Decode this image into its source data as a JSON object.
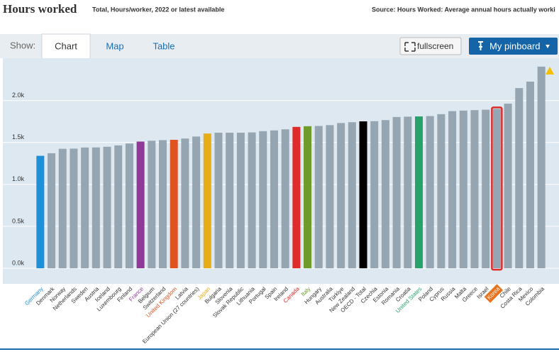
{
  "header": {
    "title": "Hours worked",
    "subtitle": "Total, Hours/worker, 2022 or latest available",
    "source": "Source: Hours Worked: Average annual hours actually worki"
  },
  "tabs": {
    "show": "Show:",
    "items": [
      "Chart",
      "Map",
      "Table"
    ],
    "fullscreen": "fullscreen",
    "pinboard": "My pinboard"
  },
  "chart_data": {
    "type": "bar",
    "categories": [
      "Germany",
      "Denmark",
      "Norway",
      "Netherlands",
      "Sweden",
      "Austria",
      "Iceland",
      "Luxembourg",
      "Finland",
      "France",
      "Belgium",
      "Switzerland",
      "United Kingdom",
      "Latvia",
      "European Union (27 countries)",
      "Japan",
      "Bulgaria",
      "Slovenia",
      "Slovak Republic",
      "Lithuania",
      "Portugal",
      "Spain",
      "Ireland",
      "Canada",
      "Italy",
      "Hungary",
      "Australia",
      "Türkiye",
      "New Zealand",
      "OECD - Total",
      "Czechia",
      "Estonia",
      "Romania",
      "Croatia",
      "United States",
      "Poland",
      "Cyprus",
      "Russia",
      "Malta",
      "Greece",
      "Israel",
      "Korea",
      "Chile",
      "Costa Rica",
      "Mexico",
      "Colombia"
    ],
    "values": [
      1341,
      1372,
      1425,
      1427,
      1440,
      1441,
      1449,
      1465,
      1488,
      1511,
      1521,
      1528,
      1532,
      1547,
      1571,
      1607,
      1617,
      1617,
      1617,
      1620,
      1635,
      1644,
      1657,
      1686,
      1694,
      1697,
      1707,
      1732,
      1742,
      1752,
      1754,
      1767,
      1804,
      1808,
      1811,
      1815,
      1838,
      1874,
      1880,
      1886,
      1891,
      1901,
      1963,
      2149,
      2226,
      2405
    ],
    "colors": [
      "#1f8fd8",
      "#95a5b2",
      "#95a5b2",
      "#95a5b2",
      "#95a5b2",
      "#95a5b2",
      "#95a5b2",
      "#95a5b2",
      "#95a5b2",
      "#8e3a96",
      "#95a5b2",
      "#95a5b2",
      "#e0521f",
      "#95a5b2",
      "#95a5b2",
      "#e6ad17",
      "#95a5b2",
      "#95a5b2",
      "#95a5b2",
      "#95a5b2",
      "#95a5b2",
      "#95a5b2",
      "#95a5b2",
      "#e02b2b",
      "#6e9b2a",
      "#95a5b2",
      "#95a5b2",
      "#95a5b2",
      "#95a5b2",
      "#000000",
      "#95a5b2",
      "#95a5b2",
      "#95a5b2",
      "#95a5b2",
      "#27a36a",
      "#95a5b2",
      "#95a5b2",
      "#95a5b2",
      "#95a5b2",
      "#95a5b2",
      "#95a5b2",
      "#95a5b2",
      "#95a5b2",
      "#95a5b2",
      "#95a5b2",
      "#95a5b2"
    ],
    "highlighted": "Korea",
    "ylim": [
      0,
      2480
    ],
    "yticks": [
      {
        "value": 0,
        "label": "0.0k"
      },
      {
        "value": 500,
        "label": "0.5k"
      },
      {
        "value": 1000,
        "label": "1.0k"
      },
      {
        "value": 1500,
        "label": "1.5k"
      },
      {
        "value": 2000,
        "label": "2.0k"
      }
    ],
    "grid": true
  }
}
